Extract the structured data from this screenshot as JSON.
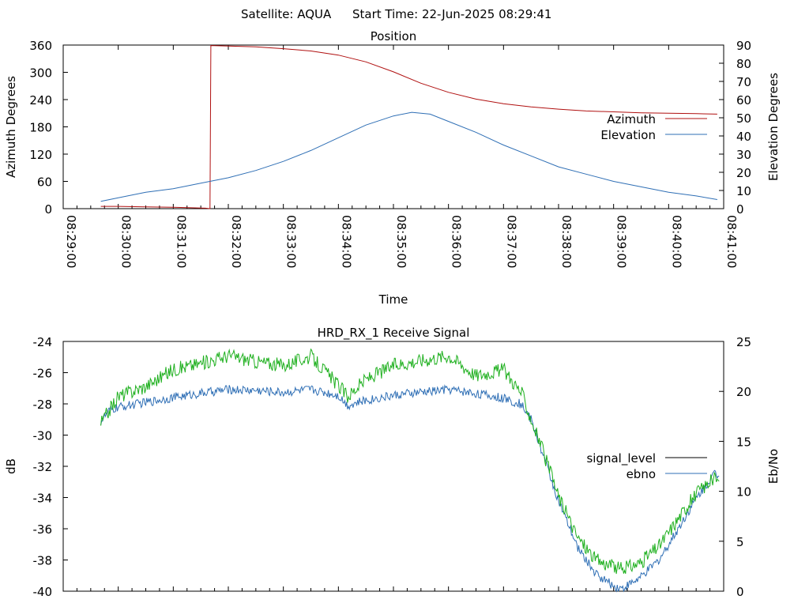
{
  "header": {
    "satellite_label": "Satellite: AQUA",
    "start_time_label": "Start Time: 22-Jun-2025 08:29:41"
  },
  "chart_data": [
    {
      "type": "line",
      "title": "Position",
      "xlabel": "Time",
      "ylabel_left": "Azimuth Degrees",
      "ylabel_right": "Elevation Degrees",
      "xlim": [
        "08:29:00",
        "08:41:00"
      ],
      "x_ticks": [
        "08:29:00",
        "08:30:00",
        "08:31:00",
        "08:32:00",
        "08:33:00",
        "08:34:00",
        "08:35:00",
        "08:36:00",
        "08:37:00",
        "08:38:00",
        "08:39:00",
        "08:40:00",
        "08:41:00"
      ],
      "ylim_left": [
        0,
        360
      ],
      "y_ticks_left": [
        0,
        60,
        120,
        180,
        240,
        300,
        360
      ],
      "ylim_right": [
        0,
        90
      ],
      "y_ticks_right": [
        0,
        10,
        20,
        30,
        40,
        50,
        60,
        70,
        80,
        90
      ],
      "legend_position": "right",
      "series": [
        {
          "name": "Azimuth",
          "axis": "left",
          "color": "#b01010",
          "points": [
            [
              "08:29:41",
              5
            ],
            [
              "08:30:00",
              5
            ],
            [
              "08:30:30",
              4
            ],
            [
              "08:31:00",
              3
            ],
            [
              "08:31:20",
              2
            ],
            [
              "08:31:35",
              1
            ],
            [
              "08:31:40",
              0
            ],
            [
              "08:31:41",
              359
            ],
            [
              "08:32:00",
              358
            ],
            [
              "08:32:30",
              356
            ],
            [
              "08:33:00",
              352
            ],
            [
              "08:33:30",
              347
            ],
            [
              "08:34:00",
              338
            ],
            [
              "08:34:30",
              323
            ],
            [
              "08:35:00",
              301
            ],
            [
              "08:35:30",
              276
            ],
            [
              "08:36:00",
              256
            ],
            [
              "08:36:30",
              241
            ],
            [
              "08:37:00",
              231
            ],
            [
              "08:37:30",
              224
            ],
            [
              "08:38:00",
              219
            ],
            [
              "08:38:30",
              215
            ],
            [
              "08:39:00",
              213
            ],
            [
              "08:39:30",
              211
            ],
            [
              "08:40:00",
              210
            ],
            [
              "08:40:30",
              209
            ],
            [
              "08:40:53",
              208
            ]
          ]
        },
        {
          "name": "Elevation",
          "axis": "right",
          "color": "#2f6fb5",
          "points": [
            [
              "08:29:41",
              4
            ],
            [
              "08:30:00",
              6
            ],
            [
              "08:30:30",
              9
            ],
            [
              "08:31:00",
              11
            ],
            [
              "08:31:30",
              14
            ],
            [
              "08:32:00",
              17
            ],
            [
              "08:32:30",
              21
            ],
            [
              "08:33:00",
              26
            ],
            [
              "08:33:30",
              32
            ],
            [
              "08:34:00",
              39
            ],
            [
              "08:34:30",
              46
            ],
            [
              "08:35:00",
              51
            ],
            [
              "08:35:20",
              53
            ],
            [
              "08:35:40",
              52
            ],
            [
              "08:36:00",
              48
            ],
            [
              "08:36:30",
              42
            ],
            [
              "08:37:00",
              35
            ],
            [
              "08:37:30",
              29
            ],
            [
              "08:38:00",
              23
            ],
            [
              "08:38:30",
              19
            ],
            [
              "08:39:00",
              15
            ],
            [
              "08:39:30",
              12
            ],
            [
              "08:40:00",
              9
            ],
            [
              "08:40:30",
              7
            ],
            [
              "08:40:53",
              5
            ]
          ]
        }
      ]
    },
    {
      "type": "line",
      "title": "HRD_RX_1 Receive Signal",
      "xlabel": "",
      "ylabel_left": "dB",
      "ylabel_right": "Eb/No",
      "xlim": [
        "08:29:00",
        "08:41:00"
      ],
      "ylim_left": [
        -40,
        -24
      ],
      "y_ticks_left": [
        -40,
        -38,
        -36,
        -34,
        -32,
        -30,
        -28,
        -26,
        -24
      ],
      "ylim_right": [
        0,
        25
      ],
      "y_ticks_right": [
        0,
        5,
        10,
        15,
        20,
        25
      ],
      "legend_position": "right",
      "series": [
        {
          "name": "signal_level",
          "axis": "left",
          "color": "#000000",
          "legend_only": true,
          "points": []
        },
        {
          "name": "ebno",
          "axis": "right",
          "color": "#2f6fb5",
          "points": [
            [
              "08:29:41",
              17
            ],
            [
              "08:29:50",
              18
            ],
            [
              "08:30:00",
              18.4
            ],
            [
              "08:30:30",
              18.9
            ],
            [
              "08:31:00",
              19.4
            ],
            [
              "08:31:30",
              19.8
            ],
            [
              "08:32:00",
              20.2
            ],
            [
              "08:32:30",
              20.1
            ],
            [
              "08:33:00",
              19.9
            ],
            [
              "08:33:30",
              20.2
            ],
            [
              "08:34:00",
              19.6
            ],
            [
              "08:34:10",
              18.6
            ],
            [
              "08:34:30",
              19.1
            ],
            [
              "08:35:00",
              19.6
            ],
            [
              "08:35:30",
              19.9
            ],
            [
              "08:36:00",
              20.2
            ],
            [
              "08:36:30",
              19.8
            ],
            [
              "08:37:00",
              19.3
            ],
            [
              "08:37:20",
              18.7
            ],
            [
              "08:37:30",
              17.2
            ],
            [
              "08:37:40",
              14.5
            ],
            [
              "08:38:00",
              9
            ],
            [
              "08:38:20",
              4.5
            ],
            [
              "08:38:40",
              1.8
            ],
            [
              "08:39:00",
              0.5
            ],
            [
              "08:39:10",
              0.3
            ],
            [
              "08:39:30",
              1.4
            ],
            [
              "08:39:50",
              3.2
            ],
            [
              "08:40:10",
              6.2
            ],
            [
              "08:40:30",
              9.3
            ],
            [
              "08:40:50",
              11.8
            ],
            [
              "08:40:55",
              11.5
            ]
          ]
        },
        {
          "name": "",
          "axis": "right",
          "color": "#1fb01f",
          "points": [
            [
              "08:29:41",
              16.8
            ],
            [
              "08:30:00",
              19.5
            ],
            [
              "08:30:30",
              20.5
            ],
            [
              "08:31:00",
              22.2
            ],
            [
              "08:31:30",
              22.8
            ],
            [
              "08:32:00",
              23.6
            ],
            [
              "08:32:30",
              23.0
            ],
            [
              "08:33:00",
              22.6
            ],
            [
              "08:33:30",
              23.5
            ],
            [
              "08:34:00",
              20.6
            ],
            [
              "08:34:10",
              19.5
            ],
            [
              "08:34:30",
              21.2
            ],
            [
              "08:35:00",
              22.6
            ],
            [
              "08:35:30",
              23.1
            ],
            [
              "08:36:00",
              23.6
            ],
            [
              "08:36:30",
              21.6
            ],
            [
              "08:37:00",
              22.2
            ],
            [
              "08:37:20",
              19.8
            ],
            [
              "08:37:30",
              17.2
            ],
            [
              "08:37:40",
              14.8
            ],
            [
              "08:38:00",
              9.5
            ],
            [
              "08:38:20",
              5.5
            ],
            [
              "08:38:40",
              3.2
            ],
            [
              "08:39:00",
              2.4
            ],
            [
              "08:39:10",
              2.2
            ],
            [
              "08:39:30",
              2.9
            ],
            [
              "08:39:50",
              4.6
            ],
            [
              "08:40:10",
              7.2
            ],
            [
              "08:40:30",
              9.8
            ],
            [
              "08:40:50",
              11.3
            ],
            [
              "08:40:55",
              11.0
            ]
          ]
        }
      ]
    }
  ]
}
